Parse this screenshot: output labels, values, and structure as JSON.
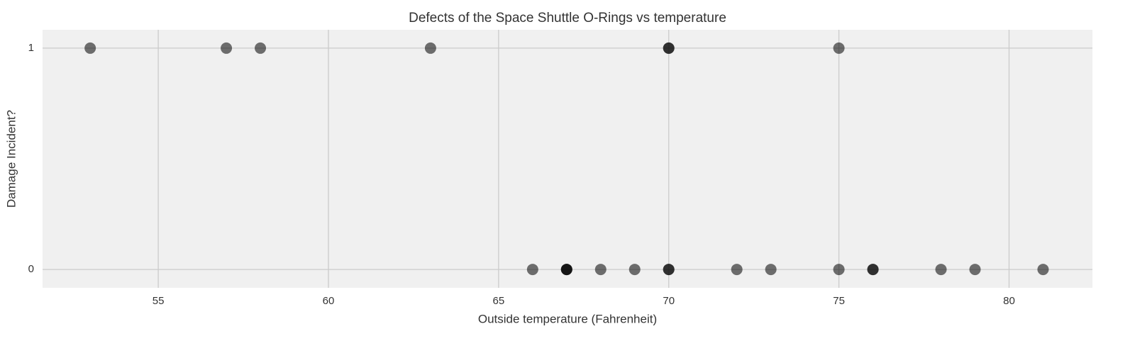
{
  "chart_data": {
    "type": "scatter",
    "title": "Defects of the Space Shuttle O-Rings vs temperature",
    "x_label": "Outside temperature (Fahrenheit)",
    "y_label": "Damage Incident?",
    "x": [
      53,
      57,
      58,
      63,
      70,
      70,
      75,
      66,
      67,
      67,
      67,
      68,
      69,
      70,
      70,
      72,
      73,
      75,
      76,
      76,
      78,
      79,
      81
    ],
    "values": [
      1,
      1,
      1,
      1,
      1,
      1,
      1,
      0,
      0,
      0,
      0,
      0,
      0,
      0,
      0,
      0,
      0,
      0,
      0,
      0,
      0,
      0,
      0
    ],
    "color": "#000000",
    "alpha": 0.55,
    "xlim": [
      51.6,
      82.45
    ],
    "ylim": [
      -0.083,
      1.083
    ],
    "xticks": [
      55,
      60,
      65,
      70,
      75,
      80
    ],
    "yticks": [
      0,
      1
    ],
    "grid": true
  }
}
